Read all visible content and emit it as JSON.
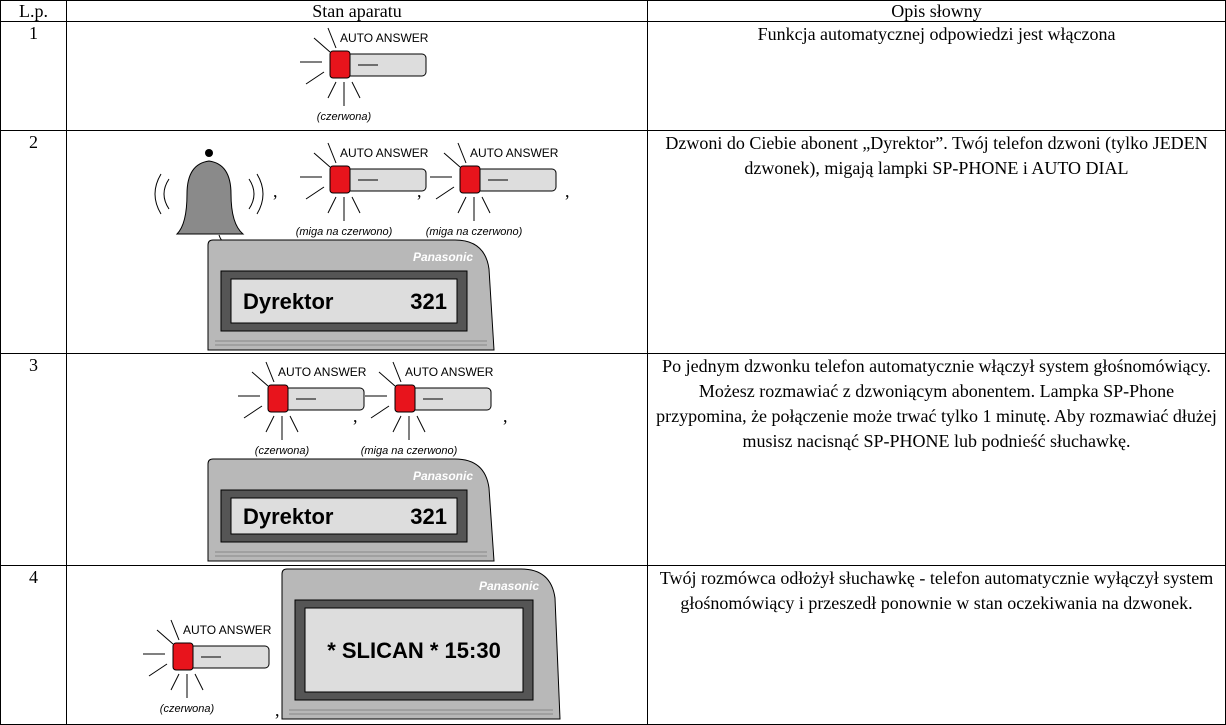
{
  "table": {
    "headers": [
      "L.p.",
      "Stan aparatu",
      "Opis słowny"
    ],
    "separator": ",",
    "rows": [
      {
        "number": "1",
        "state": {
          "lamps": [
            {
              "label": "AUTO ANSWER",
              "caption": "(czerwona)"
            }
          ]
        },
        "description": "Funkcja automatycznej odpowiedzi jest włączona"
      },
      {
        "number": "2",
        "state": {
          "lamps": [
            {
              "label": "AUTO ANSWER",
              "caption": "(miga na czerwono)"
            },
            {
              "label": "AUTO ANSWER",
              "caption": "(miga na czerwono)"
            }
          ],
          "display": {
            "brand": "Panasonic",
            "lines": [
              "Dyrektor",
              "321"
            ]
          }
        },
        "description": "Dzwoni do Ciebie abonent „Dyrektor”. Twój telefon dzwoni (tylko JEDEN dzwonek), migają lampki SP-PHONE i AUTO DIAL"
      },
      {
        "number": "3",
        "state": {
          "lamps": [
            {
              "label": "AUTO ANSWER",
              "caption": "(czerwona)"
            },
            {
              "label": "AUTO ANSWER",
              "caption": "(miga na czerwono)"
            }
          ],
          "display": {
            "brand": "Panasonic",
            "lines": [
              "Dyrektor",
              "321"
            ]
          }
        },
        "description": "Po jednym dzwonku telefon automatycznie włączył system głośnomówiący. Możesz rozmawiać z dzwoniącym abonentem. Lampka SP-Phone przypomina, że połączenie może trwać tylko 1 minutę. Aby rozmawiać dłużej musisz nacisnąć SP-PHONE lub podnieść słuchawkę."
      },
      {
        "number": "4",
        "state": {
          "lamps": [
            {
              "label": "AUTO ANSWER",
              "caption": "(czerwona)"
            }
          ],
          "display": {
            "brand": "Panasonic",
            "lines": [
              "* SLICAN * 15:30"
            ]
          }
        },
        "description": "Twój rozmówca odłożył słuchawkę - telefon automatycznie wyłączył system głośnomówiący i przeszedł ponownie w stan oczekiwania na dzwonek."
      }
    ]
  }
}
